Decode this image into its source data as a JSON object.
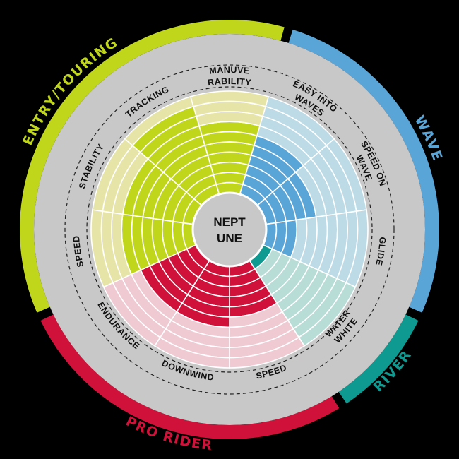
{
  "chart_data": {
    "type": "radial-bar",
    "title": "NEPT UNE",
    "title_lines": [
      "NEPT",
      "UNE"
    ],
    "scale_max": 10,
    "groups": [
      {
        "name": "WAVE",
        "color": "#5aa5d8",
        "light": "#bcdbe6"
      },
      {
        "name": "RIVER",
        "color": "#0f9a91",
        "light": "#b8dcd6"
      },
      {
        "name": "PRO RIDER",
        "color": "#d0123a",
        "light": "#efcad3"
      },
      {
        "name": "ENTRY/TOURING",
        "color": "#c0d61b",
        "light": "#e6e4a6"
      }
    ],
    "categories": [
      {
        "label": "MANUVE RABILITY",
        "lines": [
          "MANUVE",
          "RABILITY"
        ],
        "group": "ENTRY/TOURING",
        "value": 7
      },
      {
        "label": "EASY INTO WAVES",
        "lines": [
          "EASY  INTO",
          "WAVES"
        ],
        "group": "WAVE",
        "value": 6
      },
      {
        "label": "SPEED ON WAVE",
        "lines": [
          "SPEED ON",
          "WAVE"
        ],
        "group": "WAVE",
        "value": 5
      },
      {
        "label": "GLIDE",
        "lines": [
          "GLIDE"
        ],
        "group": "WAVE",
        "value": 3
      },
      {
        "label": "WHITE WATER",
        "lines": [
          "WHITE",
          "WATER"
        ],
        "group": "RIVER",
        "value": 1
      },
      {
        "label": "SPEED",
        "lines": [
          "SPEED"
        ],
        "group": "PRO RIDER",
        "value": 5
      },
      {
        "label": "DOWNWIND",
        "lines": [
          "DOWNWIND"
        ],
        "group": "PRO RIDER",
        "value": 6
      },
      {
        "label": "ENDURANCE",
        "lines": [
          "ENDURANCE"
        ],
        "group": "PRO RIDER",
        "value": 6
      },
      {
        "label": "SPEED",
        "lines": [
          "SPEED"
        ],
        "group": "ENTRY/TOURING",
        "value": 7
      },
      {
        "label": "STABILITY",
        "lines": [
          "STABILITY"
        ],
        "group": "ENTRY/TOURING",
        "value": 7
      },
      {
        "label": "TRACKING",
        "lines": [
          "TRACKING"
        ],
        "group": "ENTRY/TOURING",
        "value": 9
      }
    ]
  }
}
